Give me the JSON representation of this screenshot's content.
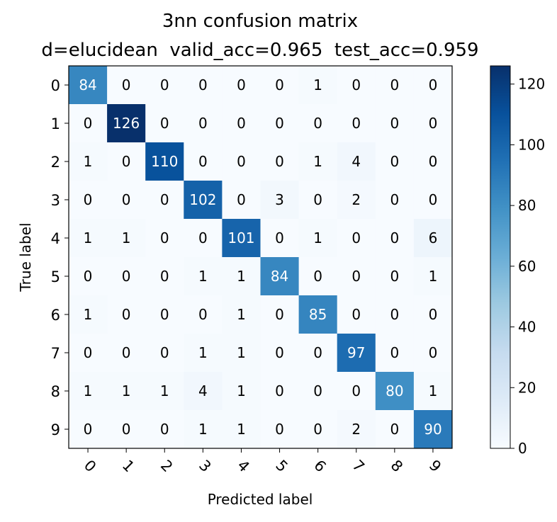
{
  "chart_data": {
    "type": "heatmap",
    "title": "3nn confusion matrix",
    "subtitle": "d=elucidean  valid_acc=0.965  test_acc=0.959",
    "xlabel": "Predicted label",
    "ylabel": "True label",
    "x_categories": [
      "0",
      "1",
      "2",
      "3",
      "4",
      "5",
      "6",
      "7",
      "8",
      "9"
    ],
    "y_categories": [
      "0",
      "1",
      "2",
      "3",
      "4",
      "5",
      "6",
      "7",
      "8",
      "9"
    ],
    "values": [
      [
        84,
        0,
        0,
        0,
        0,
        0,
        1,
        0,
        0,
        0
      ],
      [
        0,
        126,
        0,
        0,
        0,
        0,
        0,
        0,
        0,
        0
      ],
      [
        1,
        0,
        110,
        0,
        0,
        0,
        1,
        4,
        0,
        0
      ],
      [
        0,
        0,
        0,
        102,
        0,
        3,
        0,
        2,
        0,
        0
      ],
      [
        1,
        1,
        0,
        0,
        101,
        0,
        1,
        0,
        0,
        6
      ],
      [
        0,
        0,
        0,
        1,
        1,
        84,
        0,
        0,
        0,
        1
      ],
      [
        1,
        0,
        0,
        0,
        1,
        0,
        85,
        0,
        0,
        0
      ],
      [
        0,
        0,
        0,
        1,
        1,
        0,
        0,
        97,
        0,
        0
      ],
      [
        1,
        1,
        1,
        4,
        1,
        0,
        0,
        0,
        80,
        1
      ],
      [
        0,
        0,
        0,
        1,
        1,
        0,
        0,
        2,
        0,
        90
      ]
    ],
    "colormap": "Blues",
    "colorbar": {
      "range": [
        0,
        126
      ],
      "ticks": [
        0,
        20,
        40,
        60,
        80,
        100,
        120
      ]
    },
    "grid": false
  }
}
